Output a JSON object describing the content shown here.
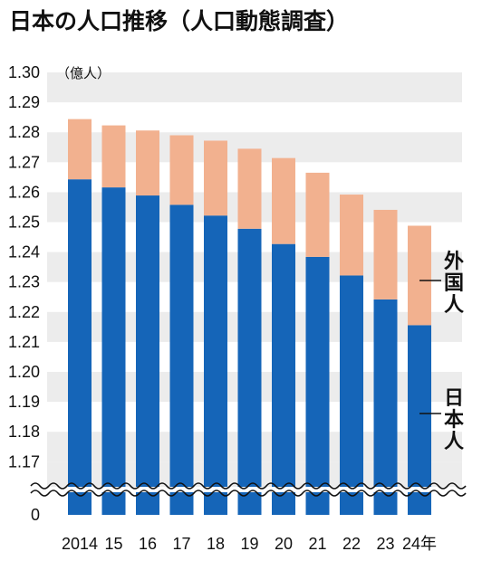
{
  "chart_data": {
    "type": "bar",
    "stacked": true,
    "title": "日本の人口推移（人口動態調査）",
    "unit_label": "（億人）",
    "categories": [
      "2014",
      "15",
      "16",
      "17",
      "18",
      "19",
      "20",
      "21",
      "22",
      "23",
      "24年"
    ],
    "series": [
      {
        "name": "日本人",
        "color": "#1565b8",
        "values": [
          1.2643,
          1.2616,
          1.2589,
          1.2558,
          1.2522,
          1.2478,
          1.2427,
          1.2384,
          1.2322,
          1.2242,
          1.2156
        ]
      },
      {
        "name": "外国人",
        "color": "#f2b18f",
        "values": [
          0.0201,
          0.0207,
          0.0217,
          0.0232,
          0.025,
          0.0267,
          0.0287,
          0.0281,
          0.027,
          0.0299,
          0.0332
        ]
      }
    ],
    "totals": [
      1.2844,
      1.2823,
      1.2806,
      1.279,
      1.2772,
      1.2745,
      1.2714,
      1.2665,
      1.2592,
      1.2541,
      1.2488
    ],
    "y_ticks": [
      "1.30",
      "1.29",
      "1.28",
      "1.27",
      "1.26",
      "1.25",
      "1.24",
      "1.23",
      "1.22",
      "1.21",
      "1.20",
      "1.19",
      "1.18",
      "1.17",
      "0"
    ],
    "ylim": [
      1.165,
      1.3
    ],
    "axis_break": true,
    "grid": "alternating horizontal bands",
    "legend_placement": "right, beside the last bar"
  }
}
